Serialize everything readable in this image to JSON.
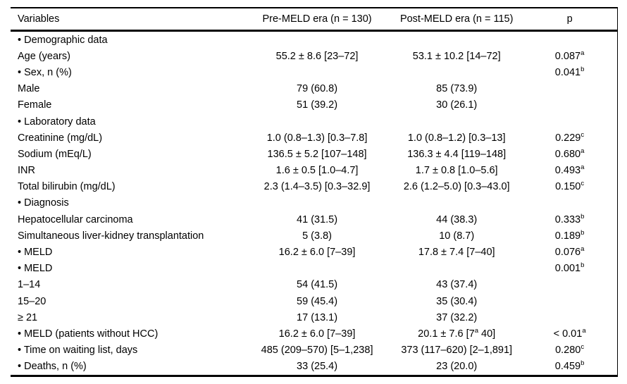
{
  "table": {
    "columns": [
      "Variables",
      "Pre-MELD era (n = 130)",
      "Post-MELD era (n = 115)",
      "p"
    ],
    "rows": [
      [
        "• Demographic data",
        "",
        "",
        ""
      ],
      [
        "Age (years)",
        "55.2 ± 8.6 [23–72]",
        "53.1 ± 10.2 [14–72]",
        "0.087^a^"
      ],
      [
        "• Sex, n (%)",
        "",
        "",
        "0.041^b^"
      ],
      [
        "Male",
        "79 (60.8)",
        "85 (73.9)",
        ""
      ],
      [
        "Female",
        "51 (39.2)",
        "30 (26.1)",
        ""
      ],
      [
        "• Laboratory data",
        "",
        "",
        ""
      ],
      [
        "Creatinine (mg/dL)",
        "1.0 (0.8–1.3) [0.3–7.8]",
        "1.0 (0.8–1.2) [0.3–13]",
        "0.229^c^"
      ],
      [
        "Sodium (mEq/L)",
        "136.5 ± 5.2 [107–148]",
        "136.3 ± 4.4 [119–148]",
        "0.680^a^"
      ],
      [
        "INR",
        "1.6 ± 0.5 [1.0–4.7]",
        "1.7 ± 0.8 [1.0–5.6]",
        "0.493^a^"
      ],
      [
        "Total bilirubin (mg/dL)",
        "2.3 (1.4–3.5) [0.3–32.9]",
        "2.6 (1.2–5.0) [0.3–43.0]",
        "0.150^c^"
      ],
      [
        "• Diagnosis",
        "",
        "",
        ""
      ],
      [
        "Hepatocellular carcinoma",
        "41 (31.5)",
        "44 (38.3)",
        "0.333^b^"
      ],
      [
        "Simultaneous liver-kidney transplantation",
        "5 (3.8)",
        "10 (8.7)",
        "0.189^b^"
      ],
      [
        "• MELD",
        "16.2 ± 6.0 [7–39]",
        "17.8 ± 7.4 [7–40]",
        "0.076^a^"
      ],
      [
        "• MELD",
        "",
        "",
        "0.001^b^"
      ],
      [
        "1–14",
        "54 (41.5)",
        "43 (37.4)",
        ""
      ],
      [
        "15–20",
        "59 (45.4)",
        "35 (30.4)",
        ""
      ],
      [
        "≥ 21",
        "17 (13.1)",
        "37 (32.2)",
        ""
      ],
      [
        "• MELD (patients without HCC)",
        "16.2 ± 6.0 [7–39]",
        "20.1 ± 7.6 [7^a^ 40]",
        "< 0.01^a^"
      ],
      [
        "• Time on waiting list, days",
        "485 (209–570) [5–1,238]",
        "373 (117–620) [2–1,891]",
        "0.280^c^"
      ],
      [
        "• Deaths, n (%)",
        "33 (25.4)",
        "23 (20.0)",
        "0.459^b^"
      ]
    ]
  }
}
